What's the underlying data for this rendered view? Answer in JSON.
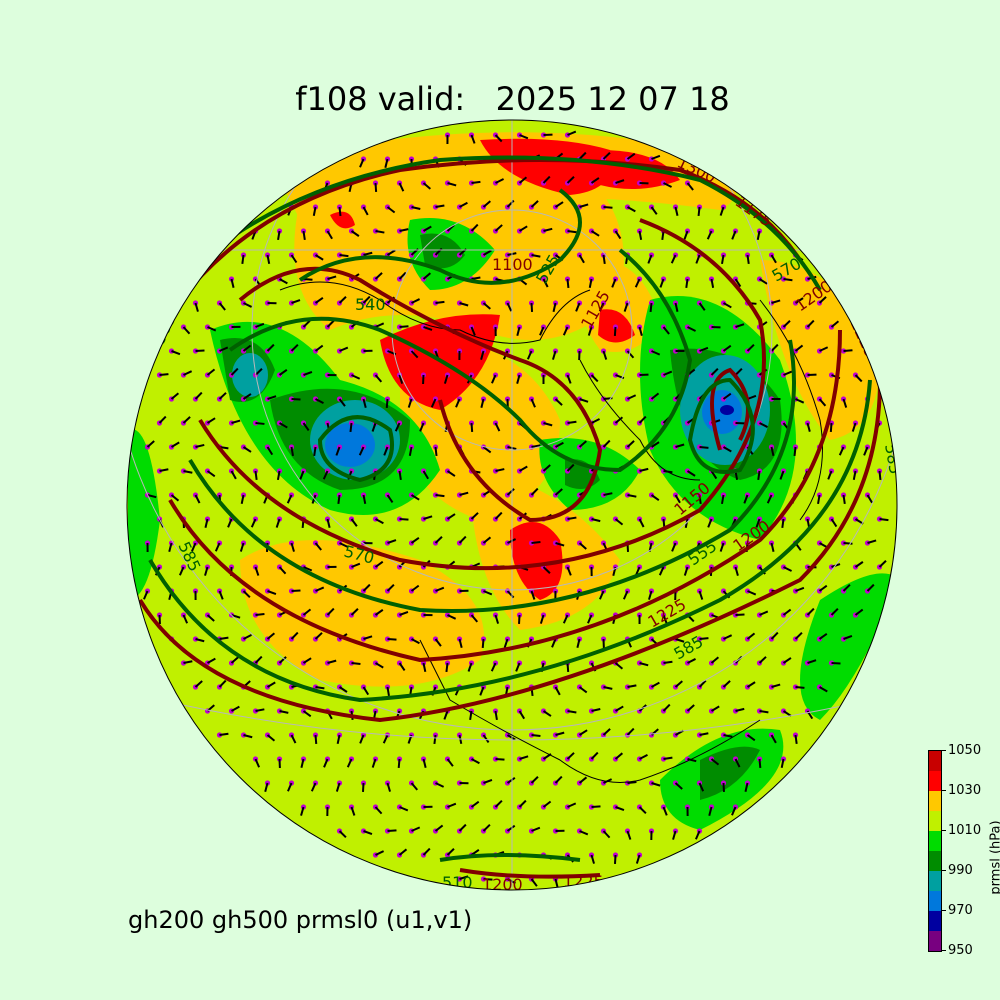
{
  "title": "f108 valid:   2025 12 07 18",
  "subtitle": "gh200 gh500 prmsl0 (u1,v1)",
  "colorbar": {
    "label": "prmsl (hPa)",
    "ticks": [
      "950",
      "970",
      "990",
      "1010",
      "1030",
      "1050"
    ],
    "levels": [
      950,
      960,
      970,
      980,
      990,
      1000,
      1010,
      1020,
      1030,
      1040,
      1050
    ],
    "colors": [
      "#780080",
      "#0000a0",
      "#0078dc",
      "#00a0a0",
      "#008c00",
      "#00dc00",
      "#c0f000",
      "#ffc800",
      "#ff0000",
      "#c80000"
    ]
  },
  "contour_colors": {
    "gh200": "#800000",
    "gh500": "#006000",
    "wind_dots": "#c000d0"
  },
  "contour_labels": [
    "1300",
    "1175",
    "1100",
    "525",
    "540",
    "1125",
    "1200",
    "1225",
    "570",
    "1150",
    "1200",
    "555",
    "1225",
    "585",
    "570",
    "585",
    "585",
    "1225",
    "1200",
    "510",
    "585"
  ]
}
